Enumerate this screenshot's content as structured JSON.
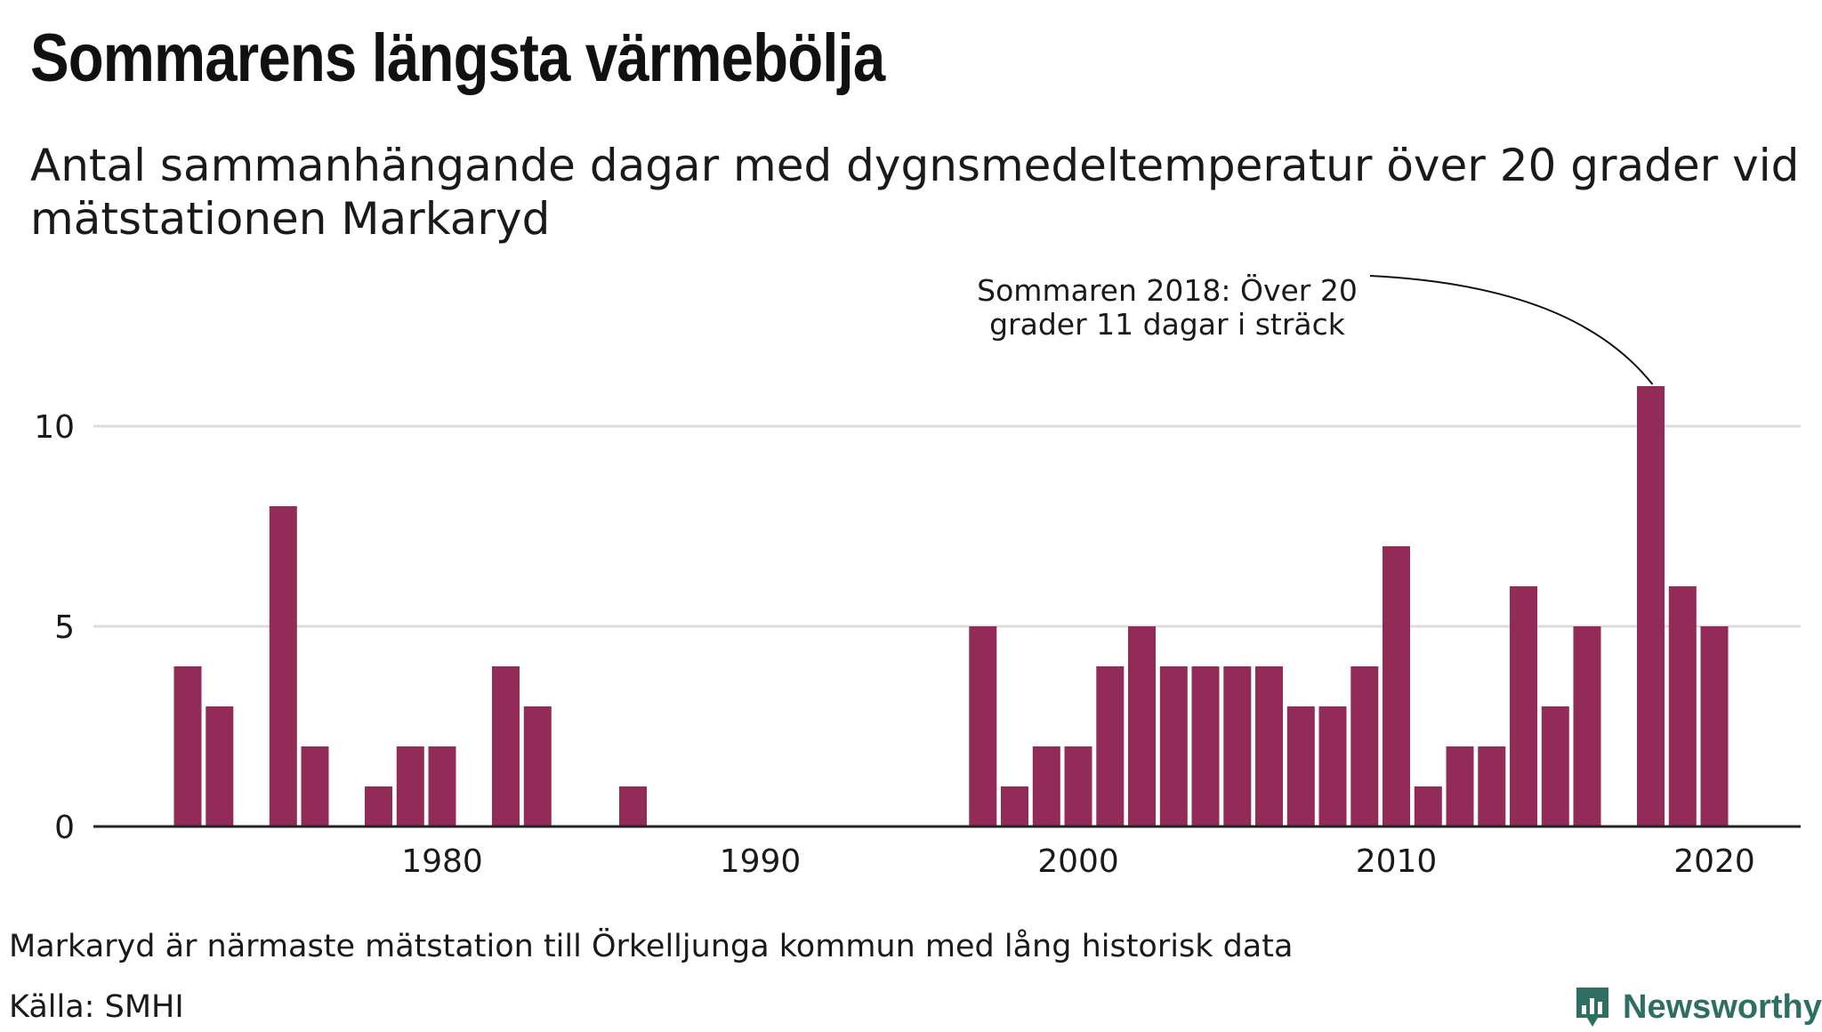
{
  "header": {
    "title": "Sommarens längsta värmebölja",
    "subtitle": "Antal sammanhängande dagar med dygnsmedeltemperatur över 20 grader vid mätstationen Markaryd"
  },
  "footer": {
    "note": "Markaryd är närmaste mätstation till Örkelljunga kommun med lång historisk data",
    "source": "Källa: SMHI",
    "logo_text": "Newsworthy"
  },
  "colors": {
    "bar": "#922b57",
    "grid": "#dcdcdc",
    "axis": "#222222",
    "logo": "#2f6e63"
  },
  "chart_data": {
    "type": "bar",
    "title": "Sommarens längsta värmebölja",
    "subtitle": "Antal sammanhängande dagar med dygnsmedeltemperatur över 20 grader vid mätstationen Markaryd",
    "xlabel": "",
    "ylabel": "",
    "xlim": [
      1970,
      2022
    ],
    "ylim": [
      0,
      12
    ],
    "x_ticks": [
      "1980",
      "1990",
      "2000",
      "2010",
      "2020"
    ],
    "y_ticks": [
      "0",
      "5",
      "10"
    ],
    "grid": true,
    "x": [
      1972,
      1973,
      1974,
      1975,
      1976,
      1977,
      1978,
      1979,
      1980,
      1981,
      1982,
      1983,
      1984,
      1985,
      1986,
      1987,
      1988,
      1989,
      1990,
      1991,
      1992,
      1993,
      1994,
      1995,
      1996,
      1997,
      1998,
      1999,
      2000,
      2001,
      2002,
      2003,
      2004,
      2005,
      2006,
      2007,
      2008,
      2009,
      2010,
      2011,
      2012,
      2013,
      2014,
      2015,
      2016,
      2017,
      2018,
      2019,
      2020
    ],
    "values": [
      4,
      3,
      0,
      8,
      2,
      0,
      1,
      2,
      2,
      0,
      4,
      3,
      0,
      0,
      1,
      0,
      0,
      0,
      0,
      0,
      0,
      0,
      0,
      0,
      0,
      5,
      1,
      2,
      2,
      4,
      5,
      4,
      4,
      4,
      4,
      3,
      3,
      4,
      7,
      1,
      2,
      2,
      6,
      3,
      5,
      0,
      11,
      6,
      5
    ],
    "annotations": [
      {
        "x": 2018,
        "lines": [
          "Sommaren 2018: Över 20",
          "grader 11 dagar i sträck"
        ]
      }
    ]
  }
}
